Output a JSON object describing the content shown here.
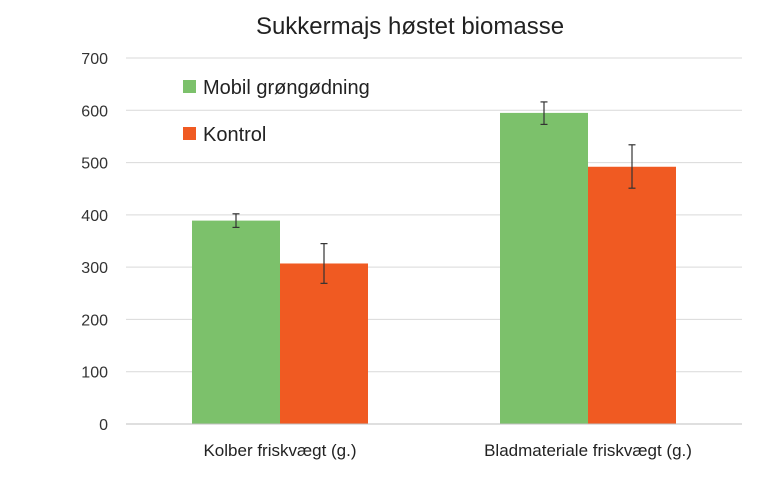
{
  "chart_data": {
    "type": "bar",
    "title": "Sukkermajs høstet biomasse",
    "xlabel": "",
    "ylabel": "",
    "ylim": [
      0,
      700
    ],
    "yticks": [
      0,
      100,
      200,
      300,
      400,
      500,
      600,
      700
    ],
    "grid": true,
    "legend_position": "top-left",
    "categories": [
      "Kolber friskvægt (g.)",
      "Bladmateriale friskvægt (g.)"
    ],
    "series": [
      {
        "name": "Mobil grøngødning",
        "color": "#7cc16b",
        "values": [
          389,
          595
        ],
        "error_low": [
          376,
          573
        ],
        "error_high": [
          402,
          616
        ]
      },
      {
        "name": "Kontrol",
        "color": "#f05a22",
        "values": [
          307,
          492
        ],
        "error_low": [
          269,
          451
        ],
        "error_high": [
          345,
          534
        ]
      }
    ]
  }
}
